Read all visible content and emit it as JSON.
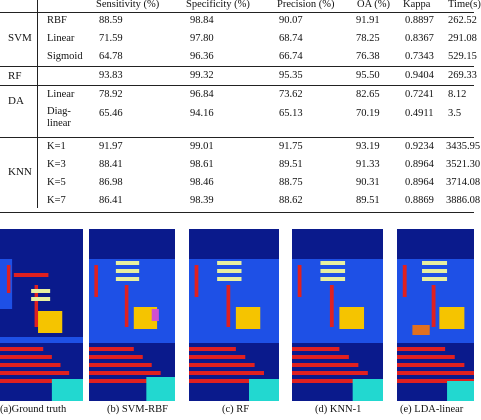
{
  "table": {
    "headers": [
      "Sensitivity (%)",
      "Specificity (%)",
      "Precision (%)",
      "OA (%)",
      "Kappa",
      "Time(s)"
    ],
    "groups": [
      {
        "label": "SVM",
        "rows": [
          {
            "sub": "RBF",
            "values": [
              "88.59",
              "98.84",
              "90.07",
              "91.91",
              "0.8897",
              "262.52"
            ]
          },
          {
            "sub": "Linear",
            "values": [
              "71.59",
              "97.80",
              "68.74",
              "78.25",
              "0.8367",
              "291.08"
            ]
          },
          {
            "sub": "Sigmoid",
            "values": [
              "64.78",
              "96.36",
              "66.74",
              "76.38",
              "0.7343",
              "529.15"
            ]
          }
        ]
      },
      {
        "label": "RF",
        "rows": [
          {
            "sub": "",
            "values": [
              "93.83",
              "99.32",
              "95.35",
              "95.50",
              "0.9404",
              "269.33"
            ]
          }
        ]
      },
      {
        "label": "DA",
        "rows": [
          {
            "sub": "Linear",
            "values": [
              "78.92",
              "96.84",
              "73.62",
              "82.65",
              "0.7241",
              "8.12"
            ]
          },
          {
            "sub": "Diag-\nlinear",
            "values": [
              "65.46",
              "94.16",
              "65.13",
              "70.19",
              "0.4911",
              "3.5"
            ]
          }
        ]
      },
      {
        "label": "KNN",
        "rows": [
          {
            "sub": "K=1",
            "values": [
              "91.97",
              "99.01",
              "91.75",
              "93.19",
              "0.9234",
              "3435.95"
            ]
          },
          {
            "sub": "K=3",
            "values": [
              "88.41",
              "98.61",
              "89.51",
              "91.33",
              "0.8964",
              "3521.30"
            ]
          },
          {
            "sub": "K=5",
            "values": [
              "86.98",
              "98.46",
              "88.75",
              "90.31",
              "0.8964",
              "3714.08"
            ]
          },
          {
            "sub": "K=7",
            "values": [
              "86.41",
              "98.39",
              "88.62",
              "89.51",
              "0.8869",
              "3886.08"
            ]
          }
        ]
      }
    ]
  },
  "captions": [
    "(a)Ground truth",
    "(b) SVM-RBF",
    "(c) RF",
    "(d) KNN-1",
    "(e) LDA-linear"
  ],
  "colors": {
    "background": "#0a1a8c",
    "field": "#1e50e6",
    "building": "#f5c400",
    "road": "#e02020",
    "accent": "#22d8d0",
    "grass": "#38e040"
  }
}
